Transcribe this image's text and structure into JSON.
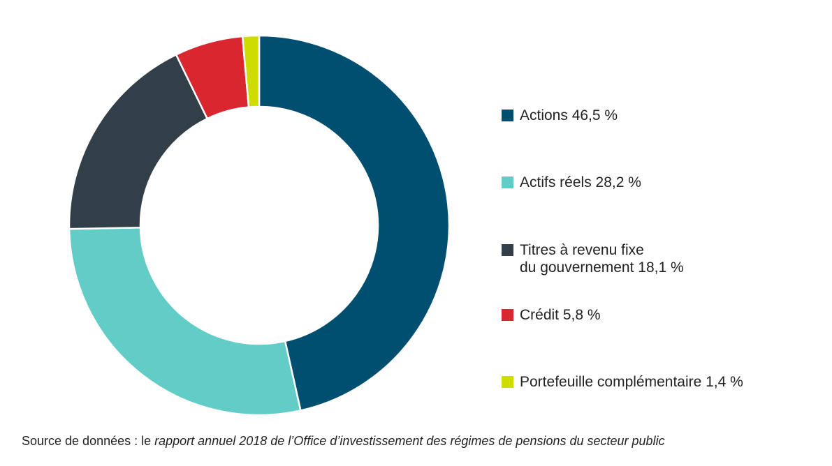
{
  "chart_data": {
    "type": "pie",
    "variant": "donut",
    "title": "",
    "slices": [
      {
        "label": "Actions",
        "value": 46.5,
        "value_label": "46,5 %",
        "color": "#004f71"
      },
      {
        "label": "Actifs réels",
        "value": 28.2,
        "value_label": "28,2 %",
        "color": "#62ccc6"
      },
      {
        "label": "Titres à revenu fixe du gouvernement",
        "value": 18.1,
        "value_label": "18,1 %",
        "color": "#323f48"
      },
      {
        "label": "Crédit",
        "value": 5.8,
        "value_label": "5,8 %",
        "color": "#d9262f"
      },
      {
        "label": "Portefeuille complémentaire",
        "value": 1.4,
        "value_label": "1,4 %",
        "color": "#cfdc00"
      }
    ],
    "legend_placement": "right"
  },
  "legend": {
    "items": [
      {
        "lines": [
          "Actions 46,5 %"
        ]
      },
      {
        "lines": [
          "Actifs réels 28,2 %"
        ]
      },
      {
        "lines": [
          "Titres à revenu fixe",
          "du gouvernement 18,1 %"
        ]
      },
      {
        "lines": [
          "Crédit 5,8 %"
        ]
      },
      {
        "lines": [
          "Portefeuille complémentaire 1,4 %"
        ]
      }
    ]
  },
  "source": {
    "prefix": "Source de données : le ",
    "title": "rapport annuel 2018 de l’Office d’investissement des régimes de pensions du secteur public"
  }
}
